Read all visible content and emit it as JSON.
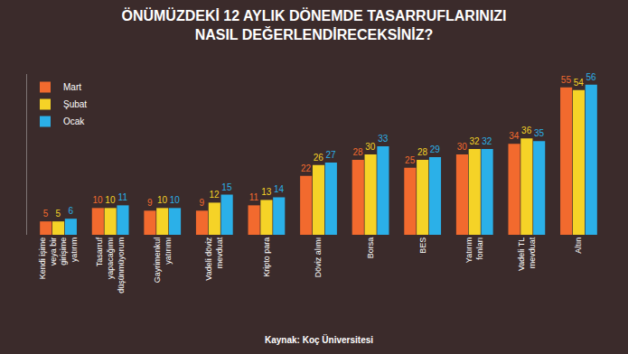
{
  "chart_data": {
    "type": "bar",
    "title": "ÖNÜMÜZDEKİ 12 AYLIK DÖNEMDE TASARRUFLARINIZI NASIL DEĞERLENDİRECEKSİNİZ?",
    "source": "Kaynak: Koç Üniversitesi",
    "categories": [
      "Kendi işime veya bir girişime yatırım",
      "Tasarruf yapacağımı düşünmüyorum",
      "Gayrimenkul yatırımı",
      "Vadeli döviz mevduat",
      "Kripto para",
      "Döviz alımı",
      "Borsa",
      "BES",
      "Yatırım fonları",
      "Vadeli TL mevduat",
      "Altın"
    ],
    "series": [
      {
        "name": "Mart",
        "color": "#f26a2e",
        "values": [
          5,
          10,
          9,
          9,
          11,
          22,
          28,
          25,
          30,
          34,
          55
        ]
      },
      {
        "name": "Şubat",
        "color": "#f5d327",
        "values": [
          5,
          10,
          10,
          12,
          13,
          26,
          30,
          28,
          32,
          36,
          54
        ]
      },
      {
        "name": "Ocak",
        "color": "#2bb0e8",
        "values": [
          6,
          11,
          10,
          15,
          14,
          27,
          33,
          29,
          32,
          35,
          56
        ]
      }
    ],
    "ylim": [
      0,
      60
    ],
    "yticks": [],
    "data_labels": true,
    "tick_labels": "x",
    "legend": "top left",
    "grid": false
  }
}
